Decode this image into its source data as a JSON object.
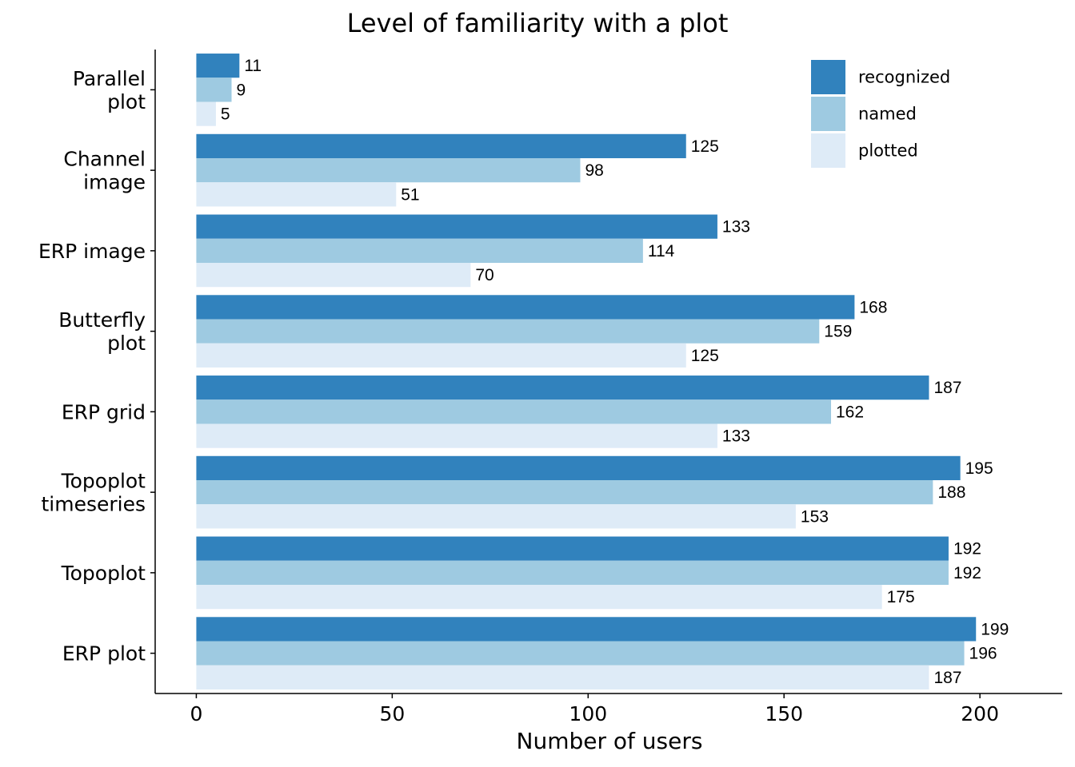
{
  "chart_data": {
    "type": "bar",
    "orientation": "horizontal",
    "title": "Level of familiarity with a plot",
    "xlabel": "Number of users",
    "ylabel": "",
    "xlim": [
      -10.5,
      221
    ],
    "xticks": [
      0,
      50,
      100,
      150,
      200
    ],
    "categories": [
      [
        "Parallel",
        "plot"
      ],
      [
        "Channel",
        "image"
      ],
      [
        "ERP image"
      ],
      [
        "Butterfly",
        "plot"
      ],
      [
        "ERP grid"
      ],
      [
        "Topoplot",
        "timeseries"
      ],
      [
        "Topoplot"
      ],
      [
        "ERP plot"
      ]
    ],
    "series": [
      {
        "name": "recognized",
        "color": "#3182bd",
        "values": [
          11,
          125,
          133,
          168,
          187,
          195,
          192,
          199
        ]
      },
      {
        "name": "named",
        "color": "#9ecae1",
        "values": [
          9,
          98,
          114,
          159,
          162,
          188,
          192,
          196
        ]
      },
      {
        "name": "plotted",
        "color": "#deebf7",
        "values": [
          5,
          51,
          70,
          125,
          133,
          153,
          175,
          187
        ]
      }
    ],
    "legend_position": "top-right",
    "grid": false
  }
}
